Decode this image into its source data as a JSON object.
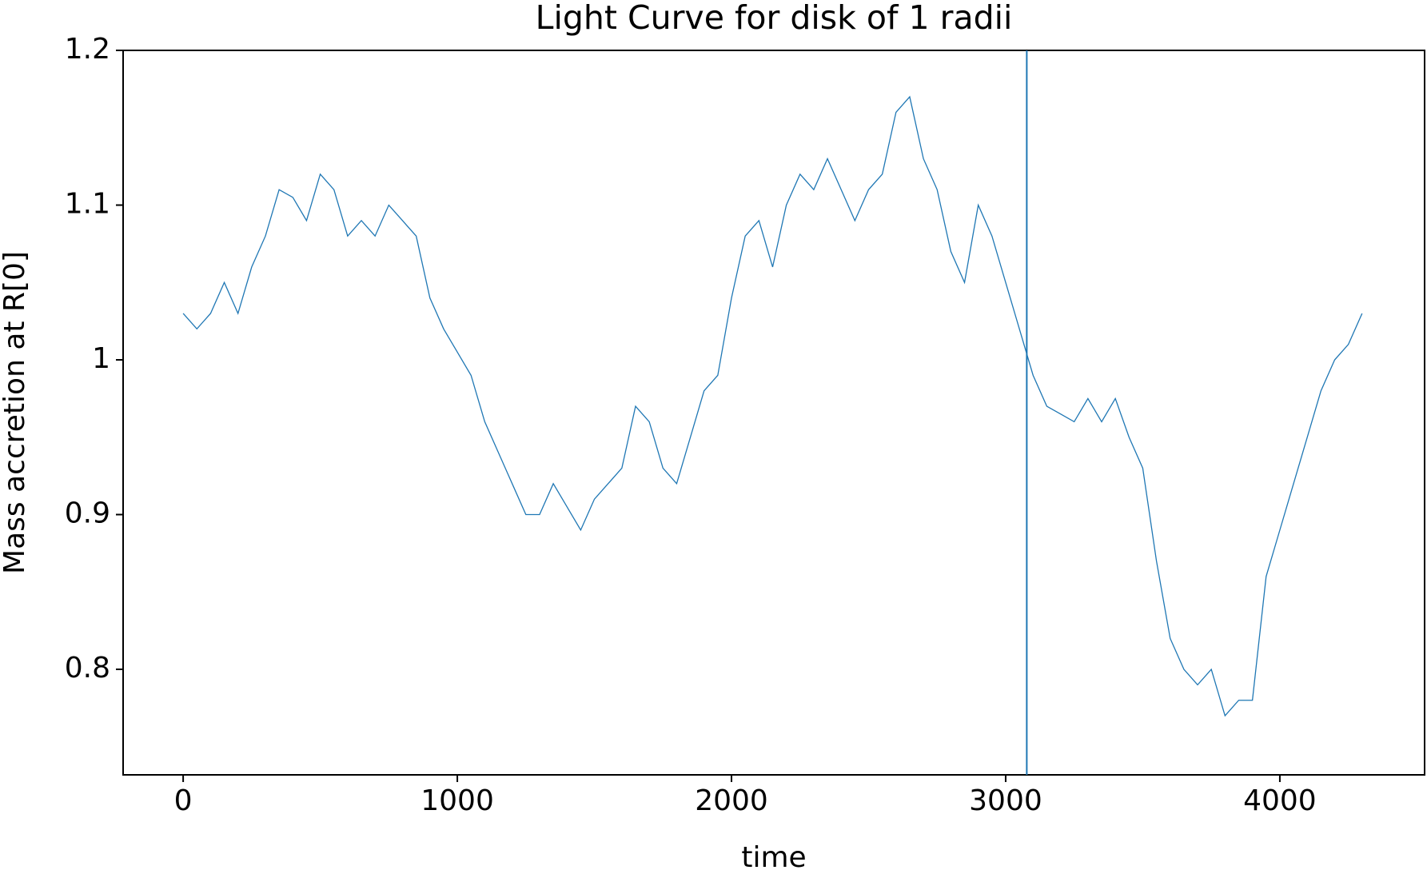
{
  "chart_data": {
    "type": "line",
    "title": "Light Curve for disk of 1 radii",
    "x_label": "time",
    "y_label": "Mass accretion at R[0]",
    "x": [
      0,
      50,
      100,
      150,
      200,
      250,
      300,
      350,
      400,
      450,
      500,
      550,
      600,
      650,
      700,
      750,
      800,
      850,
      900,
      950,
      1000,
      1050,
      1100,
      1150,
      1200,
      1250,
      1300,
      1350,
      1400,
      1450,
      1500,
      1550,
      1600,
      1650,
      1700,
      1750,
      1800,
      1850,
      1900,
      1950,
      2000,
      2050,
      2100,
      2150,
      2200,
      2250,
      2300,
      2350,
      2400,
      2450,
      2500,
      2550,
      2600,
      2650,
      2700,
      2750,
      2800,
      2850,
      2900,
      2950,
      3000,
      3050,
      3100,
      3150,
      3200,
      3250,
      3300,
      3350,
      3400,
      3450,
      3500,
      3550,
      3600,
      3650,
      3700,
      3750,
      3800,
      3850,
      3900,
      3950,
      4000,
      4050,
      4100,
      4150,
      4200,
      4250,
      4300
    ],
    "series": [
      {
        "color": "#1f77b4",
        "values": [
          1.03,
          1.02,
          1.03,
          1.05,
          1.03,
          1.06,
          1.08,
          1.11,
          1.105,
          1.09,
          1.12,
          1.11,
          1.08,
          1.09,
          1.08,
          1.1,
          1.09,
          1.08,
          1.04,
          1.02,
          1.005,
          0.99,
          0.96,
          0.94,
          0.92,
          0.9,
          0.9,
          0.92,
          0.905,
          0.89,
          0.91,
          0.92,
          0.93,
          0.97,
          0.96,
          0.93,
          0.92,
          0.95,
          0.98,
          0.99,
          1.04,
          1.08,
          1.09,
          1.06,
          1.1,
          1.12,
          1.11,
          1.13,
          1.11,
          1.09,
          1.11,
          1.12,
          1.16,
          1.17,
          1.13,
          1.11,
          1.07,
          1.05,
          1.1,
          1.08,
          1.05,
          1.02,
          0.99,
          0.97,
          0.965,
          0.96,
          0.975,
          0.96,
          0.975,
          0.95,
          0.93,
          0.87,
          0.82,
          0.8,
          0.79,
          0.8,
          0.77,
          0.78,
          0.78,
          0.86,
          0.89,
          0.92,
          0.95,
          0.98,
          1.0,
          1.01,
          1.03
        ]
      }
    ],
    "vline": {
      "value": 3077,
      "color": "#1f77b4"
    },
    "xlim": [
      -219,
      4528
    ],
    "xticks": [
      0,
      1000,
      2000,
      3000,
      4000
    ],
    "ylim": [
      0.7318,
      1.2
    ],
    "yticks": [
      0.8,
      0.9,
      1.0,
      1.1,
      1.2
    ]
  }
}
